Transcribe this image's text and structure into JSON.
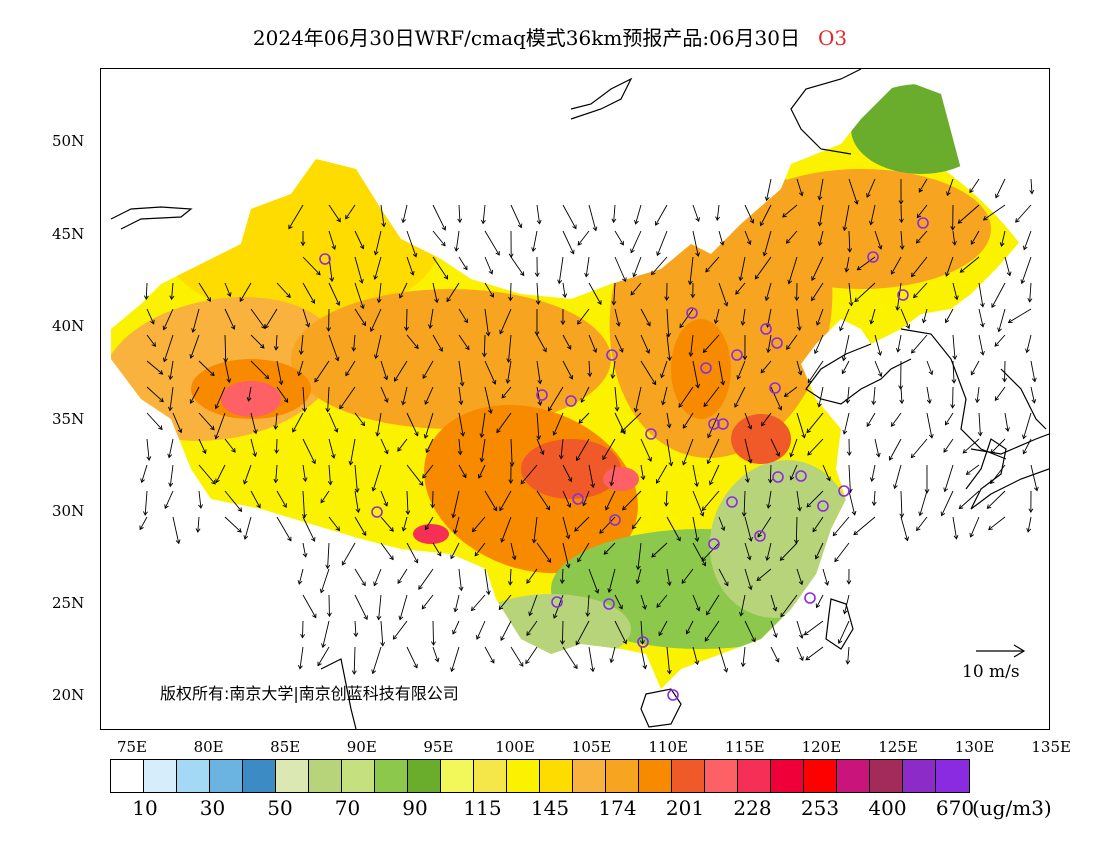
{
  "header": {
    "title": "2024年06月30日WRF/cmaq模式36km预报产品:06月30日",
    "species": "O3"
  },
  "axes": {
    "lat_labels": [
      "50N",
      "45N",
      "40N",
      "35N",
      "30N",
      "25N",
      "20N"
    ],
    "lon_labels": [
      "75E",
      "80E",
      "85E",
      "90E",
      "95E",
      "100E",
      "105E",
      "110E",
      "115E",
      "120E",
      "125E",
      "130E",
      "135E"
    ]
  },
  "legend": {
    "colors": [
      "#ffffff",
      "#d6eefc",
      "#a3d9f5",
      "#6bb3e0",
      "#3d8bc4",
      "#dce8b4",
      "#b8d47a",
      "#c5e07e",
      "#8cc84c",
      "#6aac2c",
      "#f2f75a",
      "#f5e64a",
      "#fbf200",
      "#fedc00",
      "#f9b23d",
      "#f7a420",
      "#f88a00",
      "#ef5a28",
      "#fd6065",
      "#f52f55",
      "#ef0038",
      "#fd0000",
      "#c8147b",
      "#a32b5a",
      "#8c2bc7",
      "#8a2be2"
    ],
    "labels": [
      "10",
      "30",
      "50",
      "70",
      "90",
      "115",
      "145",
      "174",
      "201",
      "228",
      "253",
      "400",
      "670"
    ],
    "unit": "(ug/m3)"
  },
  "annotations": {
    "copyright": "版权所有:南京大学|南京创蓝科技有限公司",
    "reference_vector": "10 m/s"
  },
  "map": {
    "region": "China",
    "variable": "O3 concentration with wind vectors",
    "lat_range": [
      18,
      54
    ],
    "lon_range": [
      73,
      135
    ]
  }
}
